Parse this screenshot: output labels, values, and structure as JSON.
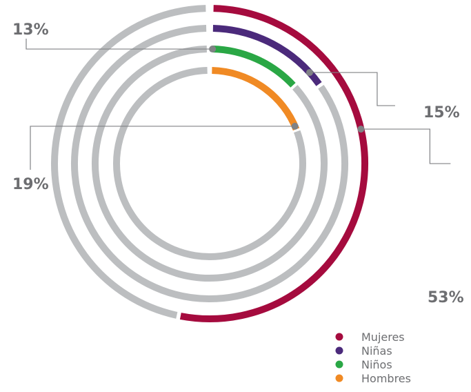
{
  "chart_data": {
    "type": "radial-bar",
    "title": "",
    "unit": "%",
    "max": 100,
    "series": [
      {
        "name": "Mujeres",
        "value": 53,
        "label": "53%",
        "color": "#a50b3e"
      },
      {
        "name": "Niñas",
        "value": 15,
        "label": "15%",
        "color": "#4b2a7b"
      },
      {
        "name": "Niños",
        "value": 13,
        "label": "13%",
        "color": "#2aa745"
      },
      {
        "name": "Hombres",
        "value": 19,
        "label": "19%",
        "color": "#f08a24"
      }
    ],
    "track_color": "#bcbec0",
    "legend_position": "bottom-right"
  }
}
